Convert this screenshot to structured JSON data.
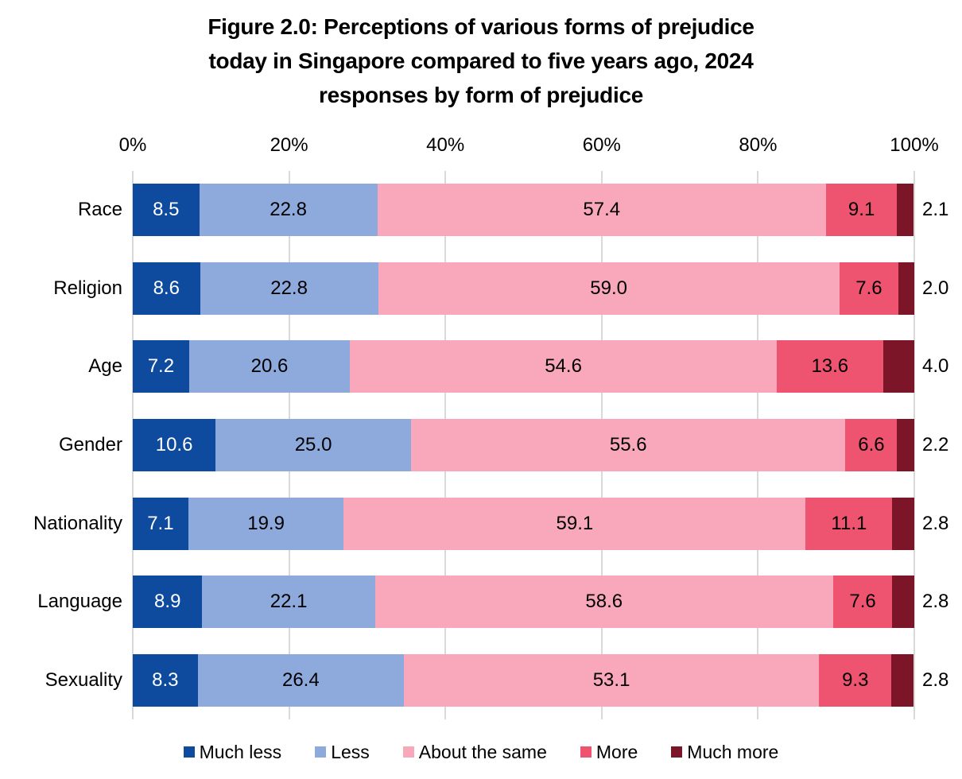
{
  "title_lines": [
    "Figure 2.0: Perceptions of various forms of prejudice",
    "today in Singapore compared to five years ago, 2024",
    "responses by form of prejudice"
  ],
  "chart_data": {
    "type": "bar",
    "stacked": true,
    "orientation": "horizontal",
    "title": "Figure 2.0: Perceptions of various forms of prejudice today in Singapore compared to five years ago, 2024 responses by form of prejudice",
    "categories": [
      "Race",
      "Religion",
      "Age",
      "Gender",
      "Nationality",
      "Language",
      "Sexuality"
    ],
    "series": [
      {
        "name": "Much less",
        "color": "#0E4A9E",
        "label_color": "#FFFFFF",
        "values": [
          8.5,
          8.6,
          7.2,
          10.6,
          7.1,
          8.9,
          8.3
        ]
      },
      {
        "name": "Less",
        "color": "#8EA9DC",
        "label_color": "#000000",
        "values": [
          22.8,
          22.8,
          20.6,
          25.0,
          19.9,
          22.1,
          26.4
        ]
      },
      {
        "name": "About the same",
        "color": "#F9A8BB",
        "label_color": "#000000",
        "values": [
          57.4,
          59.0,
          54.6,
          55.6,
          59.1,
          58.6,
          53.1
        ]
      },
      {
        "name": "More",
        "color": "#EE5470",
        "label_color": "#000000",
        "values": [
          9.1,
          7.6,
          13.6,
          6.6,
          11.1,
          7.6,
          9.3
        ]
      },
      {
        "name": "Much more",
        "color": "#7D1528",
        "label_color": "#000000",
        "values": [
          2.1,
          2.0,
          4.0,
          2.2,
          2.8,
          2.8,
          2.8
        ],
        "labels_outside": true
      }
    ],
    "x_axis": {
      "position": "top",
      "tick_labels": [
        "0%",
        "20%",
        "40%",
        "60%",
        "80%",
        "100%"
      ],
      "tick_values": [
        0,
        20,
        40,
        60,
        80,
        100
      ],
      "range": [
        0,
        100
      ]
    },
    "value_format_decimals": 1,
    "gridlines": true,
    "grid_color": "#D9D9D9",
    "legend": {
      "position": "bottom",
      "entries": [
        "Much less",
        "Less",
        "About the same",
        "More",
        "Much more"
      ]
    }
  }
}
